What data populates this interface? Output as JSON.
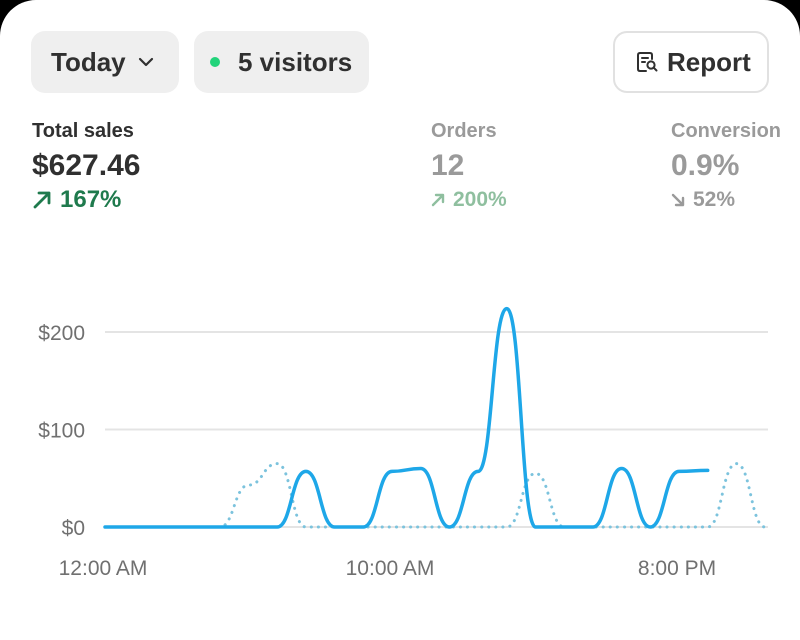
{
  "filters": {
    "period_label": "Today",
    "visitors_label": "5 visitors",
    "live_dot_color": "#22d37a"
  },
  "actions": {
    "report_label": "Report"
  },
  "metrics": {
    "total_sales": {
      "label": "Total sales",
      "value": "$627.46",
      "change": "167%",
      "direction": "up"
    },
    "orders": {
      "label": "Orders",
      "value": "12",
      "change": "200%",
      "direction": "up"
    },
    "conversion": {
      "label": "Conversion",
      "value": "0.9%",
      "change": "52%",
      "direction": "down"
    }
  },
  "chart_data": {
    "type": "line",
    "ylim": [
      0,
      220
    ],
    "y_ticks": [
      "$0",
      "$100",
      "$200"
    ],
    "y_tick_values": [
      0,
      100,
      200
    ],
    "x_tick_labels": [
      "12:00 AM",
      "10:00 AM",
      "8:00 PM"
    ],
    "x_tick_hours": [
      0,
      10,
      20
    ],
    "colors": {
      "current": "#1ea7e8",
      "previous": "#7cc3dd",
      "grid": "#e4e4e4"
    },
    "series": [
      {
        "style": "solid",
        "x": [
          0,
          1,
          2,
          3,
          4,
          5,
          6,
          7,
          8,
          9,
          10,
          11,
          12,
          13,
          14,
          15,
          16,
          17,
          18,
          19,
          20,
          21
        ],
        "y": [
          0,
          0,
          0,
          0,
          0,
          0,
          0,
          57,
          0,
          0,
          57,
          60,
          0,
          57,
          224,
          0,
          0,
          0,
          60,
          0,
          57,
          58
        ]
      },
      {
        "style": "dotted",
        "x": [
          0,
          1,
          2,
          3,
          4,
          5,
          6,
          7,
          8,
          9,
          10,
          11,
          12,
          13,
          14,
          15,
          16,
          17,
          18,
          19,
          20,
          21,
          22,
          23
        ],
        "y": [
          0,
          0,
          0,
          0,
          0,
          43,
          65,
          0,
          0,
          0,
          0,
          0,
          0,
          0,
          0,
          55,
          0,
          0,
          0,
          0,
          0,
          0,
          65,
          0
        ]
      }
    ]
  }
}
